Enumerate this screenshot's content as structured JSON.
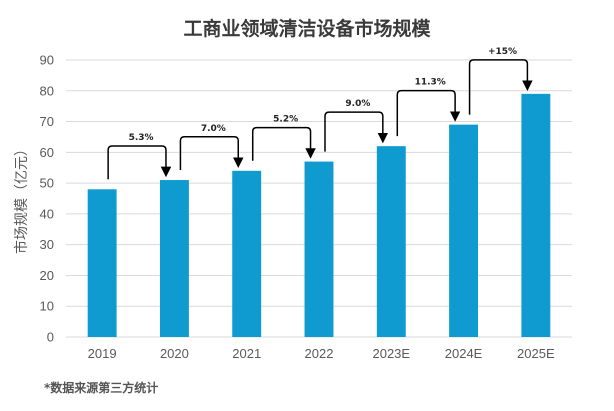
{
  "chart_data": {
    "type": "bar",
    "title": "工商业领域清洁设备市场规模",
    "ylabel": "市场规模（亿元）",
    "xlabel": "",
    "categories": [
      "2019",
      "2020",
      "2021",
      "2022",
      "2023E",
      "2024E",
      "2025E"
    ],
    "values": [
      48,
      51,
      54,
      57,
      62,
      69,
      79
    ],
    "ylim": [
      0,
      90
    ],
    "yticks": [
      0,
      10,
      20,
      30,
      40,
      50,
      60,
      70,
      80,
      90
    ],
    "growth_annotations": [
      {
        "from": "2019",
        "to": "2020",
        "label": "5.3%"
      },
      {
        "from": "2020",
        "to": "2021",
        "label": "7.0%"
      },
      {
        "from": "2021",
        "to": "2022",
        "label": "5.2%"
      },
      {
        "from": "2022",
        "to": "2023E",
        "label": "9.0%"
      },
      {
        "from": "2023E",
        "to": "2024E",
        "label": "11.3%"
      },
      {
        "from": "2024E",
        "to": "2025E",
        "label": "+15%"
      }
    ],
    "grid": true,
    "bar_color": "#0f9bd0",
    "gridline_color": "#d9d9d9"
  },
  "footnote": "*数据来源第三方统计"
}
